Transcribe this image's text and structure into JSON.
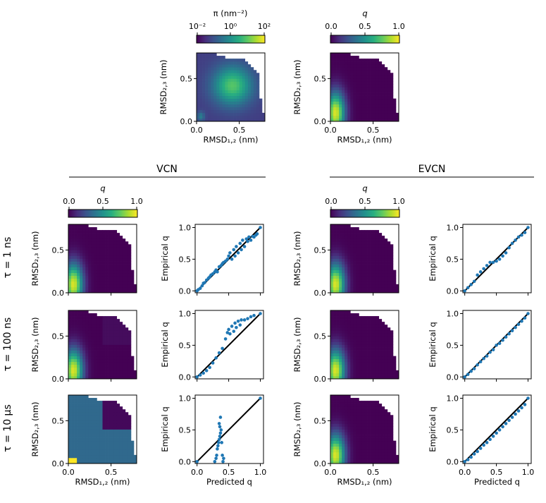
{
  "figure": {
    "group_titles": {
      "left": "VCN",
      "right": "EVCN"
    },
    "row_labels": [
      "τ = 1 ns",
      "τ = 100 ns",
      "τ = 10 µs"
    ],
    "colorbar_pi": {
      "label": "π (nm⁻²)",
      "ticks": [
        "10⁻²",
        "10⁰",
        "10²"
      ]
    },
    "colorbar_q": {
      "label": "q",
      "ticks": [
        "0.0",
        "0.5",
        "1.0"
      ]
    },
    "colormap": [
      "#440154",
      "#472d7b",
      "#3b528b",
      "#2c728e",
      "#21918c",
      "#28ae80",
      "#5ec962",
      "#addc30",
      "#fde725"
    ],
    "empty_color": "#ffffff",
    "scatter_color": "#1f77b4"
  },
  "chart_data": [
    {
      "id": "pi_map",
      "type": "heatmap",
      "xlabel": "RMSD₁,₂ (nm)",
      "ylabel": "RMSD₂,₃ (nm)",
      "xlim": [
        0,
        0.8
      ],
      "ylim": [
        0,
        0.8
      ],
      "xticks": [
        "0.0",
        "0.5"
      ],
      "yticks": [
        "0.0",
        "0.5"
      ],
      "colorbar": "π (nm⁻²)",
      "description_values": {
        "peak_center": [
          0.42,
          0.42
        ],
        "secondary_peak": [
          0.06,
          0.07
        ]
      }
    },
    {
      "id": "q_map",
      "type": "heatmap",
      "xlabel": "RMSD₁,₂ (nm)",
      "ylabel": "RMSD₂,₃ (nm)",
      "xlim": [
        0,
        0.8
      ],
      "ylim": [
        0,
        0.8
      ],
      "xticks": [
        "0.0",
        "0.5"
      ],
      "yticks": [
        "0.0",
        "0.5"
      ],
      "colorbar": "q",
      "high_q_region_center": [
        0.08,
        0.1
      ]
    },
    {
      "id": "vcn_1ns_map",
      "type": "heatmap",
      "ylabel": "RMSD₂,₃ (nm)",
      "yticks": [
        "0.0",
        "0.5"
      ],
      "xlim": [
        0,
        0.8
      ],
      "ylim": [
        0,
        0.8
      ]
    },
    {
      "id": "vcn_100ns_map",
      "type": "heatmap",
      "ylabel": "RMSD₂,₃ (nm)",
      "yticks": [
        "0.0",
        "0.5"
      ],
      "xlim": [
        0,
        0.8
      ],
      "ylim": [
        0,
        0.8
      ]
    },
    {
      "id": "vcn_10us_map",
      "type": "heatmap",
      "xlabel": "RMSD₁,₂ (nm)",
      "ylabel": "RMSD₂,₃ (nm)",
      "xticks": [
        "0.0",
        "0.5"
      ],
      "yticks": [
        "0.0",
        "0.5"
      ],
      "xlim": [
        0,
        0.8
      ],
      "ylim": [
        0,
        0.8
      ]
    },
    {
      "id": "evcn_1ns_map",
      "type": "heatmap",
      "ylabel": "RMSD₂,₃ (nm)",
      "yticks": [
        "0.0",
        "0.5"
      ],
      "xlim": [
        0,
        0.8
      ],
      "ylim": [
        0,
        0.8
      ]
    },
    {
      "id": "evcn_100ns_map",
      "type": "heatmap",
      "ylabel": "RMSD₂,₃ (nm)",
      "yticks": [
        "0.0",
        "0.5"
      ],
      "xlim": [
        0,
        0.8
      ],
      "ylim": [
        0,
        0.8
      ]
    },
    {
      "id": "evcn_10us_map",
      "type": "heatmap",
      "xlabel": "RMSD₁,₂ (nm)",
      "ylabel": "RMSD₂,₃ (nm)",
      "xticks": [
        "0.0",
        "0.5"
      ],
      "yticks": [
        "0.0",
        "0.5"
      ],
      "xlim": [
        0,
        0.8
      ],
      "ylim": [
        0,
        0.8
      ]
    },
    {
      "id": "vcn_1ns_scatter",
      "type": "scatter",
      "ylabel": "Empirical q",
      "xlim": [
        -0.03,
        1.05
      ],
      "ylim": [
        -0.03,
        1.05
      ],
      "yticks": [
        "0.0",
        "0.5",
        "1.0"
      ],
      "diagonal": [
        [
          0,
          0
        ],
        [
          1,
          1
        ]
      ],
      "points": [
        [
          0.0,
          0.0
        ],
        [
          0.02,
          0.02
        ],
        [
          0.05,
          0.04
        ],
        [
          0.08,
          0.08
        ],
        [
          0.1,
          0.12
        ],
        [
          0.12,
          0.13
        ],
        [
          0.15,
          0.17
        ],
        [
          0.18,
          0.2
        ],
        [
          0.2,
          0.22
        ],
        [
          0.22,
          0.25
        ],
        [
          0.25,
          0.27
        ],
        [
          0.28,
          0.3
        ],
        [
          0.3,
          0.33
        ],
        [
          0.32,
          0.3
        ],
        [
          0.35,
          0.38
        ],
        [
          0.38,
          0.4
        ],
        [
          0.4,
          0.43
        ],
        [
          0.42,
          0.45
        ],
        [
          0.45,
          0.47
        ],
        [
          0.48,
          0.5
        ],
        [
          0.5,
          0.55
        ],
        [
          0.52,
          0.6
        ],
        [
          0.55,
          0.5
        ],
        [
          0.58,
          0.65
        ],
        [
          0.6,
          0.55
        ],
        [
          0.62,
          0.7
        ],
        [
          0.65,
          0.6
        ],
        [
          0.68,
          0.75
        ],
        [
          0.7,
          0.65
        ],
        [
          0.72,
          0.8
        ],
        [
          0.75,
          0.7
        ],
        [
          0.78,
          0.82
        ],
        [
          0.8,
          0.78
        ],
        [
          0.82,
          0.85
        ],
        [
          0.85,
          0.8
        ],
        [
          0.88,
          0.86
        ],
        [
          0.9,
          0.85
        ],
        [
          0.93,
          0.88
        ],
        [
          0.95,
          0.9
        ],
        [
          1.0,
          1.0
        ]
      ]
    },
    {
      "id": "vcn_100ns_scatter",
      "type": "scatter",
      "ylabel": "Empirical q",
      "xlim": [
        -0.03,
        1.05
      ],
      "ylim": [
        -0.03,
        1.05
      ],
      "yticks": [
        "0.0",
        "0.5",
        "1.0"
      ],
      "diagonal": [
        [
          0,
          0
        ],
        [
          1,
          1
        ]
      ],
      "points": [
        [
          0.0,
          0.0
        ],
        [
          0.05,
          0.03
        ],
        [
          0.1,
          0.06
        ],
        [
          0.15,
          0.1
        ],
        [
          0.2,
          0.15
        ],
        [
          0.25,
          0.22
        ],
        [
          0.3,
          0.3
        ],
        [
          0.35,
          0.38
        ],
        [
          0.4,
          0.45
        ],
        [
          0.45,
          0.6
        ],
        [
          0.48,
          0.7
        ],
        [
          0.5,
          0.75
        ],
        [
          0.52,
          0.68
        ],
        [
          0.55,
          0.8
        ],
        [
          0.58,
          0.72
        ],
        [
          0.6,
          0.85
        ],
        [
          0.62,
          0.78
        ],
        [
          0.65,
          0.88
        ],
        [
          0.68,
          0.82
        ],
        [
          0.7,
          0.9
        ],
        [
          0.75,
          0.9
        ],
        [
          0.8,
          0.92
        ],
        [
          0.85,
          0.95
        ],
        [
          0.9,
          0.97
        ],
        [
          1.0,
          1.0
        ]
      ]
    },
    {
      "id": "vcn_10us_scatter",
      "type": "scatter",
      "xlabel": "Predicted q",
      "ylabel": "Empirical q",
      "xlim": [
        -0.03,
        1.05
      ],
      "ylim": [
        -0.03,
        1.05
      ],
      "xticks": [
        "0.0",
        "0.5",
        "1.0"
      ],
      "yticks": [
        "0.0",
        "0.5",
        "1.0"
      ],
      "diagonal": [
        [
          0,
          0
        ],
        [
          1,
          1
        ]
      ],
      "points": [
        [
          0.0,
          0.0
        ],
        [
          0.28,
          0.0
        ],
        [
          0.3,
          0.05
        ],
        [
          0.31,
          0.1
        ],
        [
          0.32,
          0.2
        ],
        [
          0.33,
          0.25
        ],
        [
          0.34,
          0.3
        ],
        [
          0.35,
          0.35
        ],
        [
          0.36,
          0.4
        ],
        [
          0.37,
          0.45
        ],
        [
          0.38,
          0.5
        ],
        [
          0.36,
          0.55
        ],
        [
          0.35,
          0.6
        ],
        [
          0.37,
          0.7
        ],
        [
          0.39,
          0.3
        ],
        [
          0.4,
          0.1
        ],
        [
          0.41,
          0.0
        ],
        [
          0.42,
          0.05
        ],
        [
          1.0,
          1.0
        ]
      ]
    },
    {
      "id": "evcn_1ns_scatter",
      "type": "scatter",
      "ylabel": "Empirical q",
      "xlim": [
        -0.03,
        1.05
      ],
      "ylim": [
        -0.03,
        1.05
      ],
      "yticks": [
        "0.0",
        "0.5",
        "1.0"
      ],
      "diagonal": [
        [
          0,
          0
        ],
        [
          1,
          1
        ]
      ],
      "points": [
        [
          0.0,
          0.0
        ],
        [
          0.05,
          0.05
        ],
        [
          0.1,
          0.1
        ],
        [
          0.15,
          0.15
        ],
        [
          0.2,
          0.25
        ],
        [
          0.25,
          0.3
        ],
        [
          0.3,
          0.35
        ],
        [
          0.35,
          0.4
        ],
        [
          0.4,
          0.45
        ],
        [
          0.45,
          0.45
        ],
        [
          0.5,
          0.47
        ],
        [
          0.55,
          0.5
        ],
        [
          0.6,
          0.55
        ],
        [
          0.65,
          0.6
        ],
        [
          0.7,
          0.68
        ],
        [
          0.75,
          0.75
        ],
        [
          0.8,
          0.8
        ],
        [
          0.85,
          0.85
        ],
        [
          0.9,
          0.88
        ],
        [
          0.95,
          0.92
        ],
        [
          1.0,
          1.0
        ]
      ]
    },
    {
      "id": "evcn_100ns_scatter",
      "type": "scatter",
      "ylabel": "Empirical q",
      "xlim": [
        -0.03,
        1.05
      ],
      "ylim": [
        -0.03,
        1.05
      ],
      "yticks": [
        "0.0",
        "0.5",
        "1.0"
      ],
      "diagonal": [
        [
          0,
          0
        ],
        [
          1,
          1
        ]
      ],
      "points": [
        [
          0.0,
          0.0
        ],
        [
          0.05,
          0.04
        ],
        [
          0.1,
          0.09
        ],
        [
          0.15,
          0.13
        ],
        [
          0.2,
          0.19
        ],
        [
          0.25,
          0.24
        ],
        [
          0.3,
          0.29
        ],
        [
          0.35,
          0.33
        ],
        [
          0.4,
          0.39
        ],
        [
          0.45,
          0.43
        ],
        [
          0.5,
          0.5
        ],
        [
          0.55,
          0.53
        ],
        [
          0.6,
          0.58
        ],
        [
          0.65,
          0.63
        ],
        [
          0.7,
          0.68
        ],
        [
          0.75,
          0.73
        ],
        [
          0.8,
          0.78
        ],
        [
          0.85,
          0.83
        ],
        [
          0.9,
          0.88
        ],
        [
          0.95,
          0.93
        ],
        [
          1.0,
          1.0
        ]
      ]
    },
    {
      "id": "evcn_10us_scatter",
      "type": "scatter",
      "xlabel": "Predicted q",
      "ylabel": "Empirical q",
      "xlim": [
        -0.03,
        1.05
      ],
      "ylim": [
        -0.03,
        1.05
      ],
      "xticks": [
        "0.0",
        "0.5",
        "1.0"
      ],
      "yticks": [
        "0.0",
        "0.5",
        "1.0"
      ],
      "diagonal": [
        [
          0,
          0
        ],
        [
          1,
          1
        ]
      ],
      "points": [
        [
          0.0,
          0.0
        ],
        [
          0.05,
          0.03
        ],
        [
          0.1,
          0.07
        ],
        [
          0.15,
          0.12
        ],
        [
          0.2,
          0.16
        ],
        [
          0.25,
          0.21
        ],
        [
          0.3,
          0.26
        ],
        [
          0.35,
          0.3
        ],
        [
          0.4,
          0.35
        ],
        [
          0.45,
          0.4
        ],
        [
          0.5,
          0.45
        ],
        [
          0.55,
          0.5
        ],
        [
          0.6,
          0.55
        ],
        [
          0.65,
          0.6
        ],
        [
          0.7,
          0.65
        ],
        [
          0.75,
          0.7
        ],
        [
          0.8,
          0.75
        ],
        [
          0.85,
          0.8
        ],
        [
          0.9,
          0.85
        ],
        [
          0.95,
          0.9
        ],
        [
          1.0,
          1.0
        ]
      ]
    }
  ]
}
